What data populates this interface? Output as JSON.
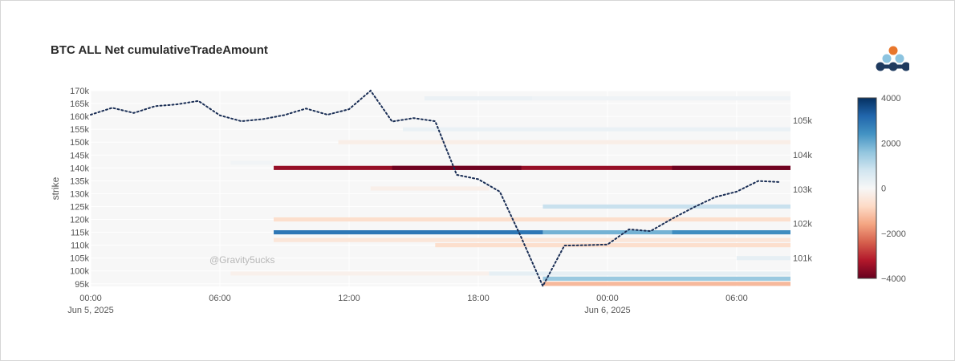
{
  "chart_data": {
    "type": "heatmap",
    "title": "BTC ALL Net cumulativeTradeAmount",
    "ylabel": "strike",
    "y_ticks": [
      "95k",
      "100k",
      "105k",
      "110k",
      "115k",
      "120k",
      "125k",
      "130k",
      "135k",
      "140k",
      "145k",
      "150k",
      "155k",
      "160k",
      "165k",
      "170k"
    ],
    "x_ticks": [
      {
        "label": "00:00",
        "sub": "Jun 5, 2025",
        "hour": 0
      },
      {
        "label": "06:00",
        "sub": "",
        "hour": 6
      },
      {
        "label": "12:00",
        "sub": "",
        "hour": 12
      },
      {
        "label": "18:00",
        "sub": "",
        "hour": 18
      },
      {
        "label": "00:00",
        "sub": "Jun 6, 2025",
        "hour": 24
      },
      {
        "label": "06:00",
        "sub": "",
        "hour": 30
      }
    ],
    "x_range_hours": [
      0,
      32.5
    ],
    "y_range": [
      94,
      170
    ],
    "y2_ticks": [
      "101k",
      "102k",
      "103k",
      "104k",
      "105k"
    ],
    "y2_range": [
      100170,
      105870
    ],
    "colorbar": {
      "ticks": [
        "4000",
        "2000",
        "0",
        "−2000",
        "−4000"
      ],
      "range": [
        -4000,
        4000
      ],
      "colorscale": [
        "#67001f",
        "#b2182b",
        "#d6604d",
        "#f4a582",
        "#fddbc7",
        "#f7f7f7",
        "#d1e5f0",
        "#92c5de",
        "#4393c3",
        "#2166ac",
        "#053061"
      ]
    },
    "heatmap_cells": [
      {
        "strike": 140,
        "from": 8.5,
        "to": 32.5,
        "value": -3500
      },
      {
        "strike": 140,
        "from": 14,
        "to": 20,
        "value": -3900
      },
      {
        "strike": 140,
        "from": 27,
        "to": 32.5,
        "value": -3900
      },
      {
        "strike": 115,
        "from": 8.5,
        "to": 21,
        "value": 2900
      },
      {
        "strike": 115,
        "from": 21,
        "to": 27,
        "value": 1900
      },
      {
        "strike": 115,
        "from": 27,
        "to": 32.5,
        "value": 2500
      },
      {
        "strike": 120,
        "from": 8.5,
        "to": 32.5,
        "value": -700
      },
      {
        "strike": 112,
        "from": 8.5,
        "to": 32.5,
        "value": -500
      },
      {
        "strike": 110,
        "from": 16,
        "to": 32.5,
        "value": -700
      },
      {
        "strike": 125,
        "from": 21,
        "to": 32.5,
        "value": 900
      },
      {
        "strike": 155,
        "from": 14.5,
        "to": 32.5,
        "value": 280
      },
      {
        "strike": 150,
        "from": 11.5,
        "to": 32.5,
        "value": -260
      },
      {
        "strike": 132,
        "from": 13,
        "to": 18.5,
        "value": -230
      },
      {
        "strike": 97,
        "from": 21,
        "to": 32.5,
        "value": 1500
      },
      {
        "strike": 95,
        "from": 21,
        "to": 32.5,
        "value": -1300
      },
      {
        "strike": 99,
        "from": 6.5,
        "to": 18.5,
        "value": -200
      },
      {
        "strike": 99,
        "from": 18.5,
        "to": 32.5,
        "value": 350
      },
      {
        "strike": 167,
        "from": 15.5,
        "to": 20.5,
        "value": 260
      },
      {
        "strike": 167,
        "from": 20.5,
        "to": 32.5,
        "value": 170
      },
      {
        "strike": 105,
        "from": 30,
        "to": 32.5,
        "value": 350
      },
      {
        "strike": 142,
        "from": 6.5,
        "to": 8.5,
        "value": 120
      }
    ],
    "series": [
      {
        "type": "line",
        "style": "dotted",
        "axis": "y2",
        "x_hours": [
          0,
          1,
          2,
          3,
          4,
          5,
          6,
          7,
          8,
          9,
          10,
          11,
          12,
          13,
          14,
          15,
          16,
          17,
          18,
          19,
          20,
          21,
          22,
          23,
          24,
          25,
          26,
          27,
          28,
          29,
          30,
          31,
          32
        ],
        "values": [
          105170,
          105370,
          105220,
          105420,
          105470,
          105570,
          105150,
          104980,
          105040,
          105160,
          105350,
          105170,
          105330,
          105870,
          104970,
          105070,
          104980,
          103420,
          103290,
          102930,
          101590,
          100180,
          101360,
          101370,
          101390,
          101830,
          101780,
          102140,
          102470,
          102770,
          102930,
          103240,
          103210
        ]
      }
    ],
    "annotations": [
      "@Gravity5ucks"
    ],
    "colors": {
      "line": "#1a2e55",
      "plot_bg": "#f7f7f7",
      "grid": "#ffffff",
      "axis_text": "#555555",
      "logo_navy": "#1e3a5f",
      "logo_blue": "#8cc4e0",
      "logo_orange": "#e8762c"
    }
  }
}
